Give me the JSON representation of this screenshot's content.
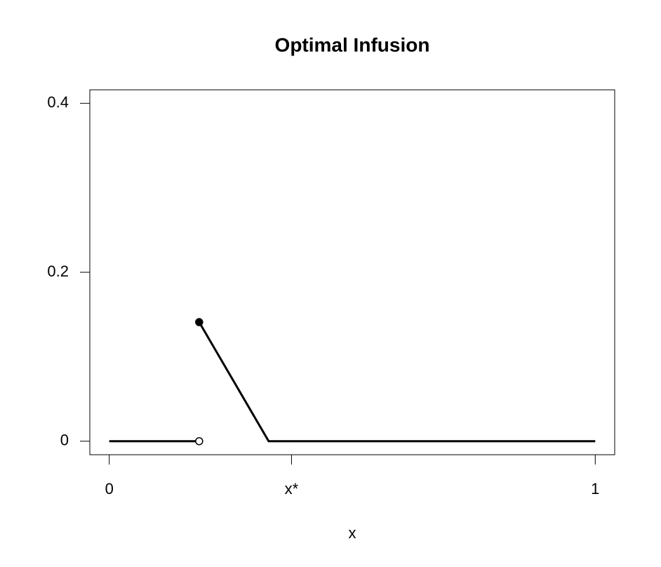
{
  "chart_data": {
    "type": "line",
    "title": "Optimal Infusion",
    "x_label": "x",
    "x": [
      0,
      0.185,
      null,
      0.185,
      0.328,
      1
    ],
    "values": [
      0,
      0,
      null,
      0.141,
      0,
      0
    ],
    "color": "#000000",
    "markers": [
      {
        "x": 0.185,
        "y": 0,
        "fill": "#ffffff"
      },
      {
        "x": 0.185,
        "y": 0.141,
        "fill": "#000000"
      }
    ],
    "xlim": [
      -0.04,
      1.04
    ],
    "ylim": [
      -0.016,
      0.416
    ],
    "xticks": [
      0,
      {
        "value": 0.375,
        "label": "x*"
      },
      1
    ],
    "yticks": [
      0,
      0.2,
      0.4
    ]
  }
}
